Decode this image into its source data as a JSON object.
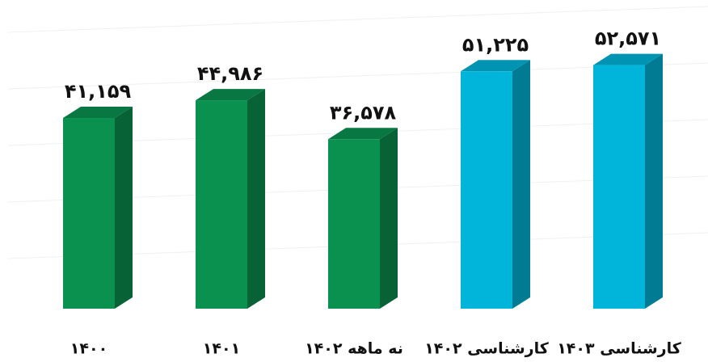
{
  "chart_data": {
    "type": "bar3d",
    "categories": [
      "۱۴۰۰",
      "۱۴۰۱",
      "نه ماهه ۱۴۰۲",
      "کارشناسی ۱۴۰۲",
      "کارشناسی ۱۴۰۳"
    ],
    "values": [
      41159,
      44986,
      36578,
      51225,
      52571
    ],
    "value_labels": [
      "۴۱,۱۵۹",
      "۴۴,۹۸۶",
      "۳۶,۵۷۸",
      "۵۱,۲۲۵",
      "۵۲,۵۷۱"
    ],
    "colors": [
      "#0a9150",
      "#0a9150",
      "#0a9150",
      "#00b5d9",
      "#00b5d9"
    ],
    "ylim": [
      0,
      60000
    ]
  }
}
